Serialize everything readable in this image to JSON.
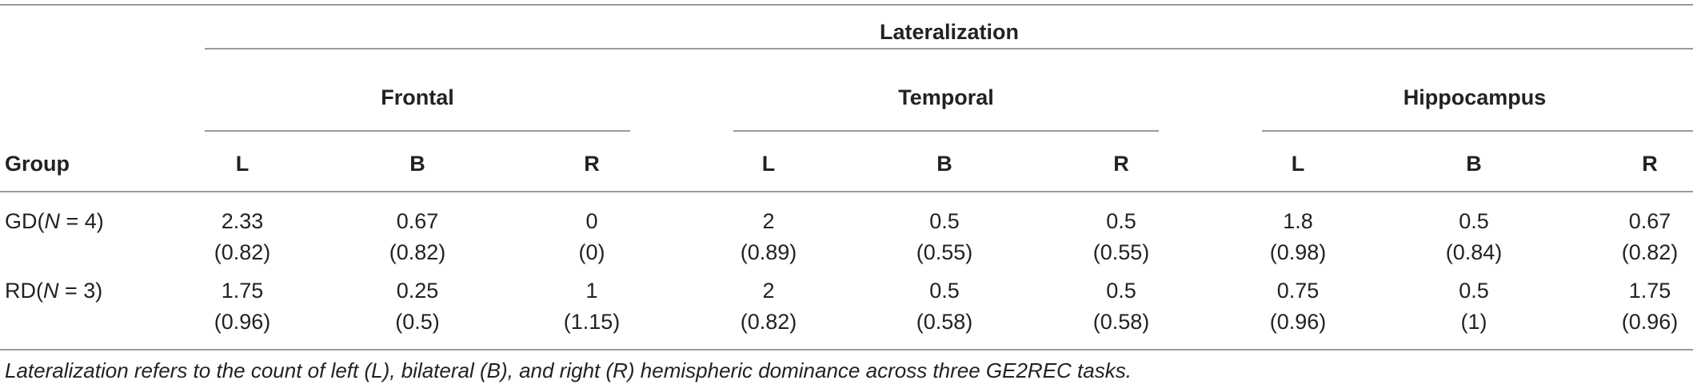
{
  "header": {
    "super": "Lateralization",
    "regions": [
      "Frontal",
      "Temporal",
      "Hippocampus"
    ],
    "group_label": "Group",
    "sub_cols": [
      "L",
      "B",
      "R",
      "L",
      "B",
      "R",
      "L",
      "B",
      "R"
    ]
  },
  "rows": [
    {
      "group_prefix": "GD(",
      "group_n": "N",
      "group_suffix": " = 4)",
      "means": [
        "2.33",
        "0.67",
        "0",
        "2",
        "0.5",
        "0.5",
        "1.8",
        "0.5",
        "0.67"
      ],
      "sds": [
        "(0.82)",
        "(0.82)",
        "(0)",
        "(0.89)",
        "(0.55)",
        "(0.55)",
        "(0.98)",
        "(0.84)",
        "(0.82)"
      ]
    },
    {
      "group_prefix": "RD(",
      "group_n": "N",
      "group_suffix": " = 3)",
      "means": [
        "1.75",
        "0.25",
        "1",
        "2",
        "0.5",
        "0.5",
        "0.75",
        "0.5",
        "1.75"
      ],
      "sds": [
        "(0.96)",
        "(0.5)",
        "(1.15)",
        "(0.82)",
        "(0.58)",
        "(0.58)",
        "(0.96)",
        "(1)",
        "(0.96)"
      ]
    }
  ],
  "footnote": "Lateralization refers to the count of left (L), bilateral (B), and right (R) hemispheric dominance across three GE2REC tasks."
}
